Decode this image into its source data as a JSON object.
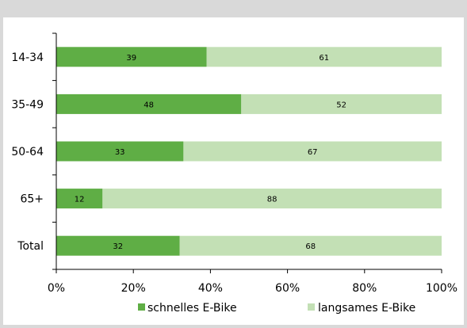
{
  "chart_data": {
    "type": "bar",
    "orientation": "horizontal",
    "stacked": true,
    "categories": [
      "14-34",
      "35-49",
      "50-64",
      "65+",
      "Total"
    ],
    "series": [
      {
        "name": "schnelles E-Bike",
        "values": [
          39,
          48,
          33,
          12,
          32
        ],
        "color": "#5fae45"
      },
      {
        "name": "langsames E-Bike",
        "values": [
          61,
          52,
          67,
          88,
          68
        ],
        "color": "#c3e0b5"
      }
    ],
    "xlim": [
      0,
      100
    ],
    "x_ticks": [
      "0%",
      "20%",
      "40%",
      "60%",
      "80%",
      "100%"
    ],
    "grid": false,
    "legend_position": "bottom"
  }
}
